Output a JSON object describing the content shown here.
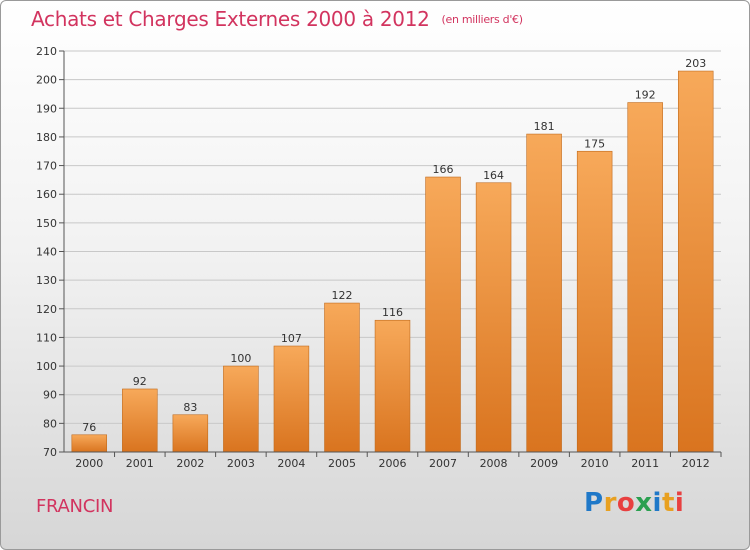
{
  "title": "Achats et Charges Externes 2000 à 2012",
  "subtitle": "(en milliers d'€)",
  "commune": "FRANCIN",
  "logo": {
    "letters": [
      "P",
      "r",
      "o",
      "x",
      "i",
      "t",
      "i"
    ],
    "colors": [
      "#1f78c8",
      "#e8a020",
      "#e84040",
      "#2aa050",
      "#1f78c8",
      "#e8a020",
      "#e84040"
    ]
  },
  "colors": {
    "title": "#d2345f",
    "bar_light": "#f7a95a",
    "bar_dark": "#d9741f",
    "grid": "#c8c8c8"
  },
  "chart_data": {
    "type": "bar",
    "categories": [
      "2000",
      "2001",
      "2002",
      "2003",
      "2004",
      "2005",
      "2006",
      "2007",
      "2008",
      "2009",
      "2010",
      "2011",
      "2012"
    ],
    "values": [
      76,
      92,
      83,
      100,
      107,
      122,
      116,
      166,
      164,
      181,
      175,
      192,
      203
    ],
    "ylim": [
      70,
      210
    ],
    "yticks": [
      70,
      80,
      90,
      100,
      110,
      120,
      130,
      140,
      150,
      160,
      170,
      180,
      190,
      200,
      210
    ],
    "grid": true
  }
}
